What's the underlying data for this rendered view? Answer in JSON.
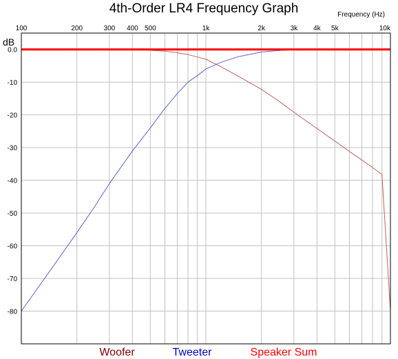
{
  "chart_data": {
    "type": "line",
    "title": "4th-Order LR4 Frequency Graph",
    "xlabel": "Frequency   (Hz)",
    "ylabel": "dB",
    "x_scale": "log",
    "xlim": [
      100,
      10000
    ],
    "ylim": [
      -90,
      5
    ],
    "grid": true,
    "legend_position": "bottom",
    "x_tick_values": [
      100,
      200,
      300,
      400,
      500,
      1000,
      2000,
      3000,
      4000,
      5000,
      10000
    ],
    "x_tick_labels": [
      "100",
      "200",
      "300",
      "400",
      "500",
      "1k",
      "2k",
      "3k",
      "4k",
      "5k",
      "10k"
    ],
    "x_minor_grid": [
      600,
      700,
      800,
      900,
      6000,
      7000,
      8000,
      9000
    ],
    "y_tick_values": [
      0,
      -10,
      -20,
      -30,
      -40,
      -50,
      -60,
      -70,
      -80
    ],
    "y_tick_labels": [
      "0.0",
      "-10",
      "-20",
      "-30",
      "-40",
      "-50",
      "-60",
      "-70",
      "-80"
    ],
    "series": [
      {
        "name": "Woofer",
        "color": "#c06060",
        "x": [
          100,
          200,
          300,
          400,
          500,
          600,
          700,
          800,
          900,
          1000,
          1200,
          1500,
          2000,
          2500,
          3000,
          4000,
          5000,
          6000,
          7000,
          8000,
          9000,
          10000
        ],
        "y": [
          0,
          -0.01,
          -0.03,
          -0.11,
          -0.27,
          -0.55,
          -1.0,
          -1.6,
          -2.3,
          -3.0,
          -5.2,
          -8.2,
          -12.2,
          -15.9,
          -19.2,
          -24.2,
          -28.0,
          -31.2,
          -33.8,
          -36.1,
          -38.2,
          -80
        ]
      },
      {
        "name": "Tweeter",
        "color": "#6060d0",
        "x": [
          100,
          150,
          200,
          250,
          300,
          400,
          500,
          600,
          700,
          800,
          900,
          1000,
          1200,
          1500,
          2000,
          2500,
          3000,
          4000,
          5000,
          10000
        ],
        "y": [
          -80,
          -66,
          -56,
          -48,
          -41,
          -31,
          -24,
          -18,
          -13.5,
          -10,
          -8,
          -6,
          -4,
          -2.2,
          -0.8,
          -0.3,
          -0.1,
          0,
          0,
          0
        ]
      },
      {
        "name": "Speaker Sum",
        "color": "#ff0000",
        "x": [
          100,
          10000
        ],
        "y": [
          0,
          0
        ]
      }
    ],
    "legend_colors": [
      "#800000",
      "#0000c0",
      "#ff0000"
    ]
  }
}
